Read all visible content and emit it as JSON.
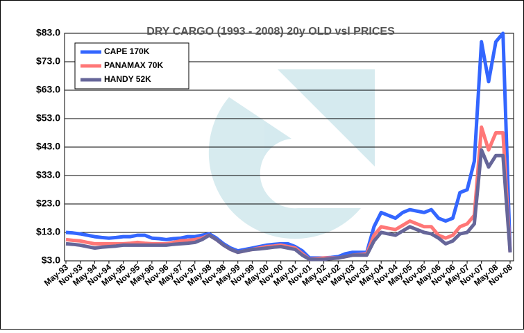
{
  "chart_data": {
    "type": "line",
    "title": "DRY CARGO (1993 - 2008) 20y OLD vsl PRICES",
    "categories": [
      "May-93",
      null,
      "Nov-93",
      null,
      "May-94",
      null,
      "Nov-94",
      null,
      "May-95",
      null,
      "Nov-95",
      null,
      "May-96",
      null,
      "Nov-96",
      null,
      "May-97",
      null,
      "Nov-97",
      null,
      "May-98",
      null,
      "Nov-98",
      null,
      "May-99",
      null,
      "Nov-99",
      null,
      "May-00",
      null,
      "Nov-00",
      null,
      "May-01",
      null,
      "Nov-01",
      null,
      "May-02",
      null,
      "Nov-02",
      null,
      "May-03",
      null,
      "Nov-03",
      null,
      "May-04",
      null,
      "Nov-04",
      null,
      "May-05",
      null,
      "Nov-05",
      null,
      "May-06",
      null,
      "Nov-06",
      null,
      "May-07",
      null,
      "Nov-07",
      null,
      "May-08",
      null,
      "Nov-08"
    ],
    "series": [
      {
        "name": "CAPE 170K",
        "color": "#3366ff",
        "values": [
          13,
          12.8,
          12.5,
          12,
          11.5,
          11.2,
          11,
          11.2,
          11.5,
          11.5,
          12,
          12,
          11,
          10.8,
          10.5,
          10.8,
          11,
          11.5,
          11.5,
          12,
          12.5,
          11,
          9,
          7.5,
          6.5,
          7,
          7.5,
          8,
          8.5,
          8.8,
          9,
          9,
          8,
          6.5,
          4,
          4,
          4,
          4.2,
          4.5,
          5.5,
          6,
          6,
          6,
          15,
          20,
          19,
          18,
          20,
          21,
          20.5,
          20,
          21,
          18,
          17,
          18,
          27,
          28,
          38,
          80,
          66,
          80,
          83,
          6
        ]
      },
      {
        "name": "PANAMAX 70K",
        "color": "#ff7777",
        "values": [
          10.5,
          10.2,
          10,
          9.5,
          9,
          9,
          9,
          9,
          9,
          9.2,
          9.5,
          9.2,
          9,
          9,
          9,
          9.5,
          10,
          10.2,
          10.5,
          11,
          12,
          10.5,
          8.5,
          7,
          6,
          6.5,
          7,
          7.5,
          8,
          8.2,
          8.5,
          8,
          7.5,
          5.5,
          3.5,
          3.8,
          4,
          4,
          4,
          4.5,
          5,
          5.2,
          5.5,
          12,
          15,
          14.5,
          14,
          15.5,
          17,
          16,
          15,
          15,
          12,
          11,
          12,
          15,
          16,
          19,
          50,
          42,
          48,
          48,
          6
        ]
      },
      {
        "name": "HANDY 52K",
        "color": "#666699",
        "values": [
          9,
          8.8,
          8.5,
          8,
          7.5,
          7.8,
          8,
          8.2,
          8.5,
          8.5,
          8.5,
          8.5,
          8.5,
          8.5,
          8.5,
          8.8,
          9,
          9.2,
          9.5,
          10.5,
          12,
          10.5,
          8.5,
          7,
          6,
          6.5,
          7,
          7.2,
          7.5,
          7.8,
          8,
          7.5,
          7,
          5,
          3.5,
          3.5,
          3.5,
          3.8,
          4,
          4.5,
          5,
          5,
          5,
          10,
          13,
          12.5,
          12,
          13.5,
          15,
          14,
          13,
          12.5,
          11,
          9,
          10,
          12.5,
          13,
          16,
          42,
          36,
          40,
          40,
          6
        ]
      }
    ],
    "ylim": [
      3,
      83
    ],
    "yticks": [
      {
        "value": 3,
        "label": "$3.0"
      },
      {
        "value": 13,
        "label": "$13.0"
      },
      {
        "value": 23,
        "label": "$23.0"
      },
      {
        "value": 33,
        "label": "$33.0"
      },
      {
        "value": 43,
        "label": "$43.0"
      },
      {
        "value": 53,
        "label": "$53.0"
      },
      {
        "value": 63,
        "label": "$63.0"
      },
      {
        "value": 73,
        "label": "$73.0"
      },
      {
        "value": 83,
        "label": "$83.0"
      }
    ],
    "grid": true,
    "legend": "top-left"
  }
}
